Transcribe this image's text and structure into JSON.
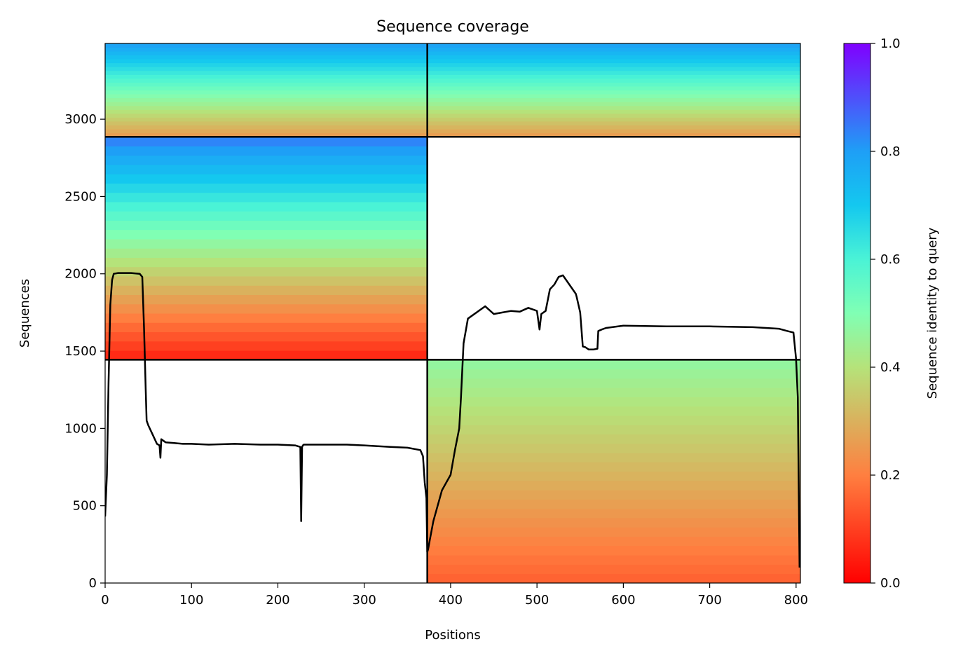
{
  "chart_data": {
    "type": "heatmap",
    "title": "Sequence coverage",
    "xlabel": "Positions",
    "ylabel": "Sequences",
    "xlim": [
      0,
      805
    ],
    "ylim": [
      0,
      3490
    ],
    "xticks": [
      0,
      100,
      200,
      300,
      400,
      500,
      600,
      700,
      800
    ],
    "yticks": [
      0,
      500,
      1000,
      1500,
      2000,
      2500,
      3000
    ],
    "colorbar": {
      "label": "Sequence identity to query",
      "range": [
        0,
        1
      ],
      "ticks": [
        "0.0",
        "0.2",
        "0.4",
        "0.6",
        "0.8",
        "1.0"
      ],
      "colormap": "rainbow_r"
    },
    "divider_lines": {
      "vertical_x": [
        373
      ],
      "horizontal_y": [
        1444,
        2886
      ]
    },
    "blocks": [
      {
        "name": "bottom-left",
        "x": [
          0,
          373
        ],
        "y": [
          0,
          1444
        ],
        "identity_range": null
      },
      {
        "name": "bottom-right",
        "x": [
          373,
          805
        ],
        "y": [
          0,
          1444
        ],
        "identity_range": [
          0.15,
          0.47
        ]
      },
      {
        "name": "middle-left",
        "x": [
          0,
          373
        ],
        "y": [
          1444,
          2886
        ],
        "identity_range": [
          0.05,
          0.85
        ]
      },
      {
        "name": "middle-right",
        "x": [
          373,
          805
        ],
        "y": [
          1444,
          2886
        ],
        "identity_range": null
      },
      {
        "name": "top-left",
        "x": [
          0,
          373
        ],
        "y": [
          2886,
          3490
        ],
        "identity_range": [
          0.25,
          0.8
        ]
      },
      {
        "name": "top-right",
        "x": [
          373,
          805
        ],
        "y": [
          2886,
          3490
        ],
        "identity_range": [
          0.25,
          0.8
        ]
      }
    ],
    "series": [
      {
        "type": "line",
        "color": "#000000",
        "x": [
          0,
          2,
          4,
          6,
          8,
          10,
          15,
          20,
          30,
          40,
          43,
          45,
          47,
          48,
          50,
          55,
          60,
          63,
          64,
          65,
          70,
          80,
          90,
          100,
          120,
          150,
          180,
          200,
          220,
          226,
          227,
          228,
          229,
          230,
          250,
          280,
          300,
          330,
          350,
          365,
          368,
          370,
          372,
          373,
          374,
          376,
          380,
          390,
          400,
          405,
          410,
          412,
          415,
          420,
          440,
          450,
          460,
          470,
          480,
          490,
          500,
          503,
          505,
          510,
          515,
          520,
          525,
          530,
          545,
          546,
          550,
          553,
          556,
          560,
          565,
          570,
          571,
          575,
          580,
          600,
          650,
          700,
          750,
          780,
          790,
          797,
          800,
          802,
          804
        ],
        "y": [
          430,
          700,
          1300,
          1800,
          1960,
          2000,
          2005,
          2005,
          2005,
          2000,
          1980,
          1650,
          1250,
          1050,
          1020,
          960,
          900,
          890,
          810,
          930,
          910,
          905,
          900,
          900,
          895,
          900,
          895,
          895,
          890,
          880,
          400,
          880,
          890,
          895,
          895,
          895,
          890,
          880,
          875,
          860,
          820,
          650,
          550,
          200,
          220,
          280,
          400,
          600,
          700,
          860,
          1000,
          1200,
          1550,
          1710,
          1790,
          1740,
          1750,
          1760,
          1755,
          1780,
          1760,
          1640,
          1740,
          1760,
          1900,
          1930,
          1980,
          1990,
          1870,
          1850,
          1750,
          1530,
          1525,
          1510,
          1510,
          1515,
          1630,
          1640,
          1650,
          1665,
          1660,
          1660,
          1655,
          1645,
          1630,
          1620,
          1450,
          1200,
          100
        ]
      }
    ]
  }
}
